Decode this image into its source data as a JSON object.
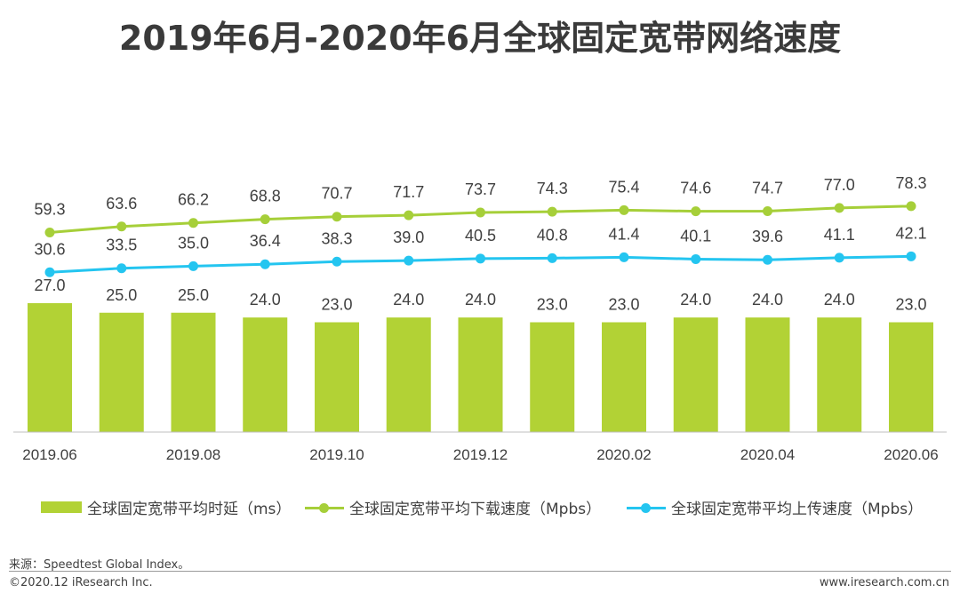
{
  "title": "2019年6月-2020年6月全球固定宽带网络速度",
  "chart_data": {
    "type": "bar+line",
    "title": "2019年6月-2020年6月全球固定宽带网络速度",
    "categories": [
      "2019.06",
      "2019.07",
      "2019.08",
      "2019.09",
      "2019.10",
      "2019.11",
      "2019.12",
      "2020.01",
      "2020.02",
      "2020.03",
      "2020.04",
      "2020.05",
      "2020.06"
    ],
    "x_tick_labels": [
      "2019.06",
      "",
      "2019.08",
      "",
      "2019.10",
      "",
      "2019.12",
      "",
      "2020.02",
      "",
      "2020.04",
      "",
      "2020.06"
    ],
    "series": [
      {
        "name": "全球固定宽带平均时延（ms）",
        "type": "bar",
        "color": "#b2d235",
        "values": [
          27.0,
          25.0,
          25.0,
          24.0,
          23.0,
          24.0,
          24.0,
          23.0,
          23.0,
          24.0,
          24.0,
          24.0,
          23.0
        ],
        "labels": [
          "27.0",
          "25.0",
          "25.0",
          "24.0",
          "23.0",
          "24.0",
          "24.0",
          "23.0",
          "23.0",
          "24.0",
          "24.0",
          "24.0",
          "23.0"
        ]
      },
      {
        "name": "全球固定宽带平均下载速度（Mpbs）",
        "type": "line",
        "color": "#a6cf39",
        "values": [
          59.3,
          63.6,
          66.2,
          68.8,
          70.7,
          71.7,
          73.7,
          74.3,
          75.4,
          74.6,
          74.7,
          77.0,
          78.3
        ],
        "labels": [
          "59.3",
          "63.6",
          "66.2",
          "68.8",
          "70.7",
          "71.7",
          "73.7",
          "74.3",
          "75.4",
          "74.6",
          "74.7",
          "77.0",
          "78.3"
        ]
      },
      {
        "name": "全球固定宽带平均上传速度（Mpbs）",
        "type": "line",
        "color": "#24c5f0",
        "values": [
          30.6,
          33.5,
          35.0,
          36.4,
          38.3,
          39.0,
          40.5,
          40.8,
          41.4,
          40.1,
          39.6,
          41.1,
          42.1
        ],
        "labels": [
          "30.6",
          "33.5",
          "35.0",
          "36.4",
          "38.3",
          "39.0",
          "40.5",
          "40.8",
          "41.4",
          "40.1",
          "39.6",
          "41.1",
          "42.1"
        ]
      }
    ],
    "legend_position": "bottom"
  },
  "legend": {
    "bar": "全球固定宽带平均时延（ms）",
    "download": "全球固定宽带平均下载速度（Mpbs）",
    "upload": "全球固定宽带平均上传速度（Mpbs）"
  },
  "footer": {
    "source": "来源：Speedtest Global Index。",
    "copyright": "©2020.12 iResearch Inc.",
    "website": "www.iresearch.com.cn"
  }
}
